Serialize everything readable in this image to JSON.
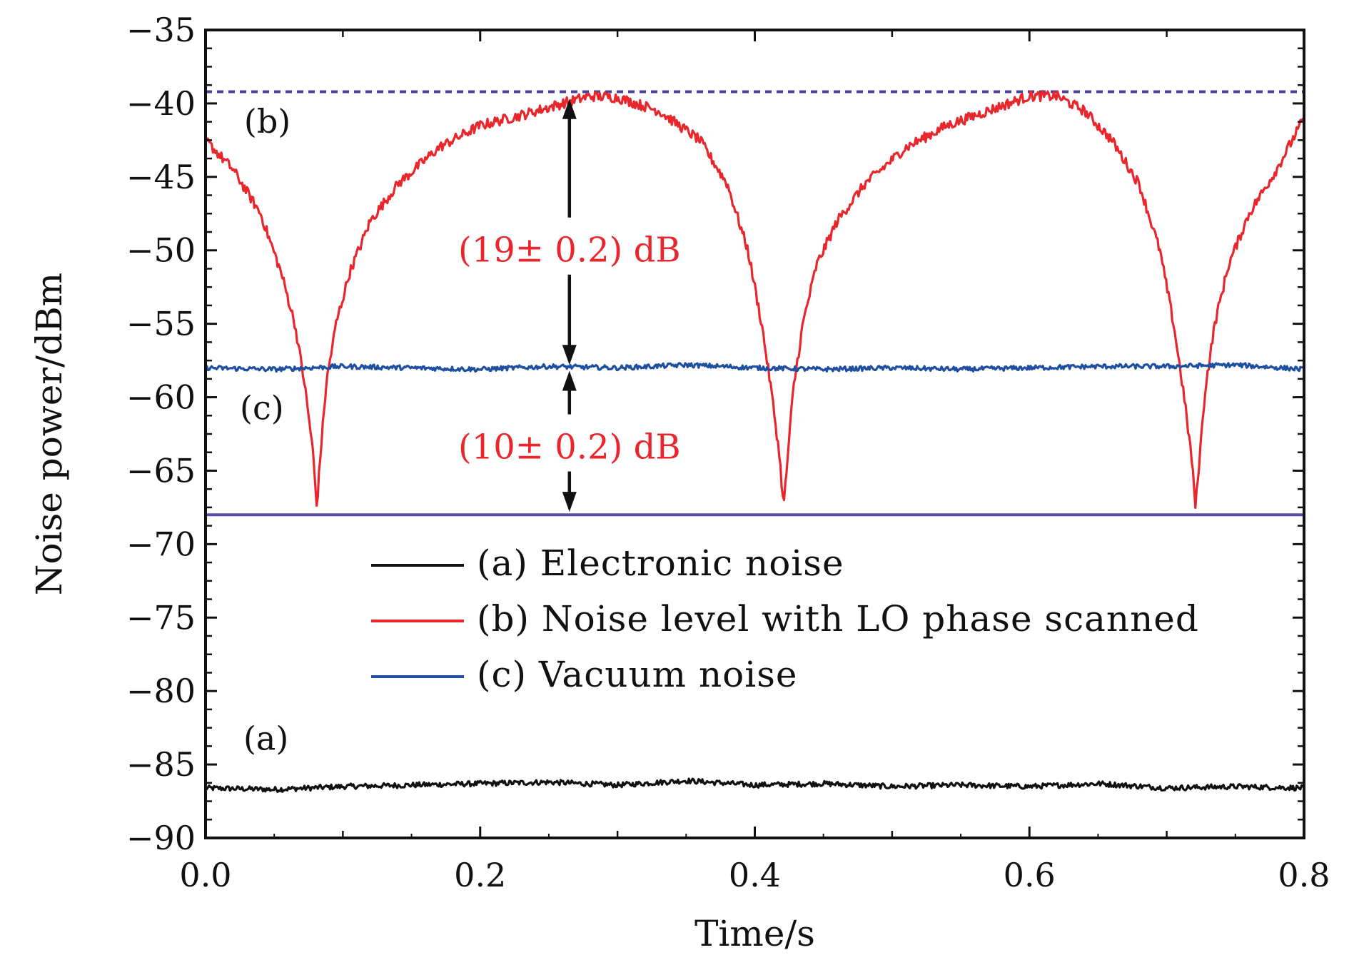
{
  "chart_data": {
    "type": "line",
    "title": "",
    "xlabel": "Time/s",
    "ylabel": "Noise power/dBm",
    "xlim": [
      0.0,
      0.8
    ],
    "ylim": [
      -90,
      -35
    ],
    "x_ticks": [
      0.0,
      0.2,
      0.4,
      0.6,
      0.8
    ],
    "x_tick_labels": [
      "0.0",
      "0.2",
      "0.4",
      "0.6",
      "0.8"
    ],
    "y_ticks": [
      -35,
      -40,
      -45,
      -50,
      -55,
      -60,
      -65,
      -70,
      -75,
      -80,
      -85,
      -90
    ],
    "y_tick_labels": [
      "−35",
      "−40",
      "−45",
      "−50",
      "−55",
      "−60",
      "−65",
      "−70",
      "−75",
      "−80",
      "−85",
      "−90"
    ],
    "grid": false,
    "legend_position": "center-right",
    "series": [
      {
        "name": "(a) Electronic noise",
        "color": "#111111",
        "x": [
          0.0,
          0.05,
          0.1,
          0.15,
          0.2,
          0.25,
          0.3,
          0.35,
          0.4,
          0.45,
          0.5,
          0.55,
          0.6,
          0.65,
          0.7,
          0.75,
          0.8
        ],
        "y": [
          -86.6,
          -86.7,
          -86.5,
          -86.4,
          -86.3,
          -86.2,
          -86.4,
          -86.1,
          -86.4,
          -86.3,
          -86.5,
          -86.4,
          -86.5,
          -86.3,
          -86.6,
          -86.5,
          -86.6
        ]
      },
      {
        "name": "(b) Noise level with LO phase scanned",
        "color": "#e8262c",
        "x": [
          0.0,
          0.02,
          0.04,
          0.055,
          0.065,
          0.072,
          0.078,
          0.081,
          0.084,
          0.088,
          0.095,
          0.105,
          0.12,
          0.14,
          0.17,
          0.2,
          0.23,
          0.26,
          0.28,
          0.3,
          0.33,
          0.36,
          0.38,
          0.395,
          0.405,
          0.412,
          0.418,
          0.421,
          0.424,
          0.428,
          0.435,
          0.445,
          0.46,
          0.48,
          0.51,
          0.54,
          0.57,
          0.6,
          0.62,
          0.64,
          0.66,
          0.68,
          0.695,
          0.705,
          0.712,
          0.718,
          0.721,
          0.724,
          0.728,
          0.735,
          0.745,
          0.76,
          0.78,
          0.8
        ],
        "y": [
          -42.5,
          -44.5,
          -47.5,
          -51.5,
          -55.0,
          -59.0,
          -63.5,
          -67.5,
          -63.5,
          -59.0,
          -55.0,
          -51.5,
          -48.0,
          -45.5,
          -43.0,
          -41.5,
          -40.8,
          -40.0,
          -39.5,
          -39.6,
          -40.5,
          -42.5,
          -45.5,
          -50.0,
          -55.0,
          -59.5,
          -64.0,
          -67.5,
          -64.0,
          -59.5,
          -55.0,
          -51.0,
          -48.0,
          -45.5,
          -43.0,
          -41.5,
          -40.5,
          -39.5,
          -39.5,
          -40.5,
          -42.5,
          -45.5,
          -50.0,
          -55.0,
          -59.5,
          -64.0,
          -67.5,
          -64.0,
          -59.5,
          -55.0,
          -51.0,
          -47.5,
          -44.5,
          -41.0
        ]
      },
      {
        "name": "(c) Vacuum noise",
        "color": "#1f4fa0",
        "x": [
          0.0,
          0.05,
          0.1,
          0.15,
          0.2,
          0.25,
          0.3,
          0.35,
          0.4,
          0.45,
          0.5,
          0.55,
          0.6,
          0.65,
          0.7,
          0.75,
          0.8
        ],
        "y": [
          -58.0,
          -58.1,
          -57.9,
          -58.0,
          -58.1,
          -57.9,
          -58.0,
          -57.8,
          -58.0,
          -58.1,
          -58.0,
          -58.1,
          -58.0,
          -57.9,
          -57.9,
          -57.8,
          -58.1
        ]
      }
    ],
    "reference_lines": [
      {
        "style": "dashed",
        "color": "#4b3fa0",
        "y": -39.2
      },
      {
        "style": "solid",
        "color": "#5b4aa8",
        "y": -68.0
      }
    ],
    "annotations": {
      "curve_labels": [
        {
          "text": "(b)",
          "x": 0.045,
          "y": -42.0
        },
        {
          "text": "(c)",
          "x": 0.041,
          "y": -61.5
        },
        {
          "text": "(a)",
          "x": 0.044,
          "y": -84.0
        }
      ],
      "arrow_upper": {
        "text": "(19± 0.2) dB",
        "x": 0.265,
        "y_top": -39.7,
        "y_bottom": -57.8,
        "label_y": -50.0,
        "label_x": 0.23
      },
      "arrow_lower": {
        "text": "(10± 0.2) dB",
        "x": 0.265,
        "y_top": -58.2,
        "y_bottom": -67.8,
        "label_y": -63.4,
        "label_x": 0.23
      }
    }
  }
}
